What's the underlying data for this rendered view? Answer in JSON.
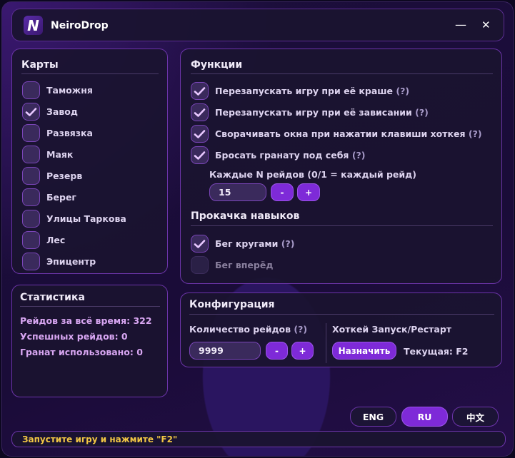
{
  "app": {
    "title": "NeiroDrop",
    "logo_letter": "N"
  },
  "window_controls": {
    "minimize": "—",
    "close": "✕"
  },
  "maps": {
    "title": "Карты",
    "items": [
      {
        "label": "Таможня",
        "checked": false
      },
      {
        "label": "Завод",
        "checked": true
      },
      {
        "label": "Развязка",
        "checked": false
      },
      {
        "label": "Маяк",
        "checked": false
      },
      {
        "label": "Резерв",
        "checked": false
      },
      {
        "label": "Берег",
        "checked": false
      },
      {
        "label": "Улицы Таркова",
        "checked": false
      },
      {
        "label": "Лес",
        "checked": false
      },
      {
        "label": "Эпицентр",
        "checked": false
      }
    ]
  },
  "functions": {
    "title": "Функции",
    "items": [
      {
        "label": "Перезапускать игру при её краше",
        "help": "(?)",
        "checked": true
      },
      {
        "label": "Перезапускать игру при её зависании",
        "help": "(?)",
        "checked": true
      },
      {
        "label": "Сворачивать окна при нажатии клавиши хоткея",
        "help": "(?)",
        "checked": true
      },
      {
        "label": "Бросать гранату под себя",
        "help": "(?)",
        "checked": true
      }
    ],
    "every_n_label": "Каждые N рейдов (0/1 = каждый рейд)",
    "every_n_value": "15",
    "minus": "-",
    "plus": "+",
    "skills_title": "Прокачка навыков",
    "skills": [
      {
        "label": "Бег кругами",
        "help": "(?)",
        "checked": true,
        "enabled": true
      },
      {
        "label": "Бег вперёд",
        "checked": false,
        "enabled": false
      }
    ]
  },
  "stats": {
    "title": "Статистика",
    "lines": [
      "Рейдов за всё время: 322",
      "Успешных рейдов: 0",
      "Гранат использовано: 0"
    ]
  },
  "config": {
    "title": "Конфигурация",
    "raids_label": "Количество рейдов",
    "raids_help": "(?)",
    "raids_value": "9999",
    "minus": "-",
    "plus": "+",
    "hotkey_label": "Хоткей Запуск/Рестарт",
    "assign_button": "Назначить",
    "current": "Текущая: F2"
  },
  "languages": [
    {
      "label": "ENG",
      "active": false
    },
    {
      "label": "RU",
      "active": true
    },
    {
      "label": "中文",
      "active": false
    }
  ],
  "status": "Запустите игру и нажмите \"F2\"",
  "colors": {
    "accent": "#7e2ad8",
    "status_text": "#f2c744",
    "border": "#6b34a8"
  }
}
